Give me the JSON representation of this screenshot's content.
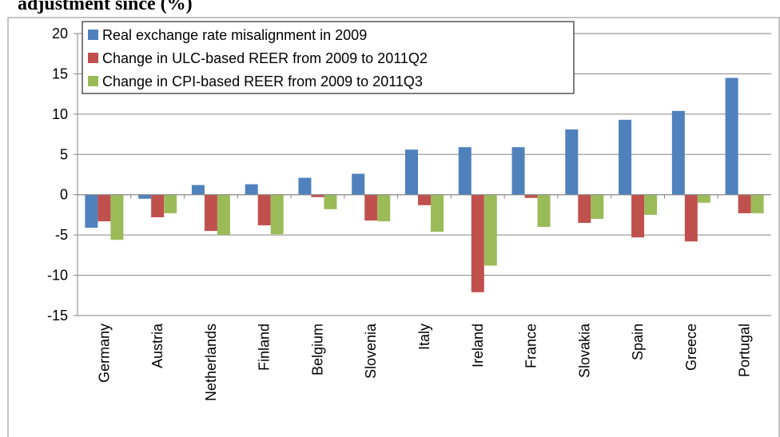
{
  "chart_data": {
    "type": "bar",
    "title": "adjustment since (%)",
    "categories": [
      "Germany",
      "Austria",
      "Netherlands",
      "Finland",
      "Belgium",
      "Slovenia",
      "Italy",
      "Ireland",
      "France",
      "Slovakia",
      "Spain",
      "Greece",
      "Portugal"
    ],
    "series": [
      {
        "name": "Real exchange rate misalignment in 2009",
        "color": "#4f81bd",
        "values": [
          -4.1,
          -0.5,
          1.2,
          1.3,
          2.1,
          2.6,
          5.6,
          5.9,
          5.9,
          8.1,
          9.3,
          10.4,
          14.5
        ]
      },
      {
        "name": "Change in ULC-based REER from 2009 to 2011Q2",
        "color": "#c0504d",
        "values": [
          -3.3,
          -2.8,
          -4.5,
          -3.8,
          -0.3,
          -3.2,
          -1.3,
          -12.1,
          -0.4,
          -3.5,
          -5.3,
          -5.8,
          -2.3
        ]
      },
      {
        "name": "Change in CPI-based REER from 2009 to 2011Q3",
        "color": "#9bbb59",
        "values": [
          -5.6,
          -2.3,
          -5.0,
          -4.9,
          -1.8,
          -3.3,
          -4.6,
          -8.8,
          -4.0,
          -3.0,
          -2.5,
          -1.0,
          -2.3
        ]
      }
    ],
    "ylim": [
      -15,
      20
    ],
    "yticks": [
      -15,
      -10,
      -5,
      0,
      5,
      10,
      15,
      20
    ],
    "grid": true,
    "legend": "top-left"
  }
}
